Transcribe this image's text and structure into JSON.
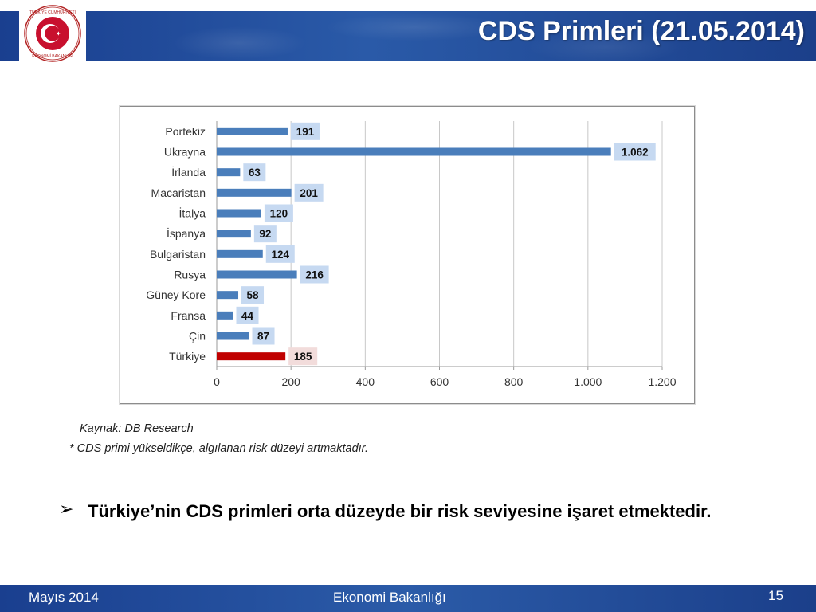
{
  "header": {
    "title": "CDS Primleri (21.05.2014)",
    "logo_icon": "turkish-ministry-seal-icon",
    "logo_text": "TÜRKİYE CUMHURİYETİ EKONOMİ BAKANLIĞI"
  },
  "colors": {
    "header_blue": "#1f4a99",
    "bar_blue": "#4a7ebb",
    "bar_red": "#c00000",
    "label_blue_bg": "#c6d9f1",
    "label_red_bg": "#f2dcdb"
  },
  "chart_data": {
    "type": "bar",
    "orientation": "horizontal",
    "categories": [
      "Portekiz",
      "Ukrayna",
      "İrlanda",
      "Macaristan",
      "İtalya",
      "İspanya",
      "Bulgaristan",
      "Rusya",
      "Güney Kore",
      "Fransa",
      "Çin",
      "Türkiye"
    ],
    "values": [
      191,
      1062,
      63,
      201,
      120,
      92,
      124,
      216,
      58,
      44,
      87,
      185
    ],
    "value_labels": [
      "191",
      "1.062",
      "63",
      "201",
      "120",
      "92",
      "124",
      "216",
      "58",
      "44",
      "87",
      "185"
    ],
    "highlight": "Türkiye",
    "xlim": [
      0,
      1200
    ],
    "x_ticks": [
      0,
      200,
      400,
      600,
      800,
      1000,
      1200
    ],
    "x_tick_labels": [
      "0",
      "200",
      "400",
      "600",
      "800",
      "1.000",
      "1.200"
    ],
    "grid": "vertical",
    "title": "",
    "xlabel": "",
    "ylabel": ""
  },
  "notes": {
    "source": "Kaynak: DB Research",
    "footnote": "* CDS primi yükseldikçe, algılanan risk düzeyi artmaktadır."
  },
  "bullet": {
    "icon": "arrow-bullet-icon",
    "symbol": "➢",
    "text": "Türkiye’nin CDS primleri orta düzeyde bir risk seviyesine işaret etmektedir."
  },
  "footer": {
    "date": "Mayıs 2014",
    "org": "Ekonomi Bakanlığı",
    "page": "15"
  }
}
